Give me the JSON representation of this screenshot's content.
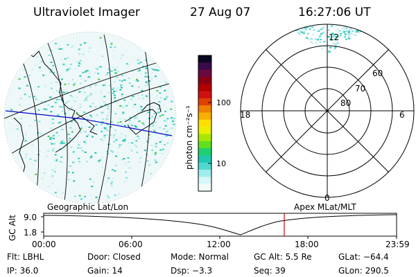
{
  "header": {
    "instrument": "Ultraviolet Imager",
    "date": "27 Aug 07",
    "time": "16:27:06 UT"
  },
  "colorbar": {
    "unit_label": "photon cm⁻²s⁻¹",
    "ticks": [
      "100",
      "10"
    ],
    "colors": [
      "#0a0820",
      "#3a0a4a",
      "#6a0a40",
      "#8a0014",
      "#b00000",
      "#d01010",
      "#e04000",
      "#f08000",
      "#f8b000",
      "#ffe000",
      "#e8f000",
      "#a8e800",
      "#60e020",
      "#20d070",
      "#20c8b0",
      "#50d8d0",
      "#a0ecec",
      "#d8f6f6",
      "#f4fbfb"
    ]
  },
  "polar": {
    "lat_labels": [
      "60",
      "70",
      "80"
    ],
    "mlt_labels": [
      "12",
      "18",
      "6",
      "0"
    ]
  },
  "timeline": {
    "left_title": "Geographic Lat/Lon",
    "right_title": "Apex MLat/MLT",
    "yaxis_label": "GC Alt",
    "y_ticks": [
      "9.0",
      "1.8"
    ],
    "x_ticks": [
      "00:00",
      "06:00",
      "12:00",
      "18:00",
      "23:59"
    ]
  },
  "info": {
    "flt": "Flt: LBHL",
    "door": "Door: Closed",
    "mode": "Mode: Normal",
    "gcalt": "GC Alt: 5.5 Re",
    "glat": "GLat: −64.4",
    "ip": "IP: 36.0",
    "gain": "Gain: 14",
    "dsp": "Dsp:   −3.3",
    "seq": "Seq: 39",
    "glon": "GLon: 290.5"
  }
}
